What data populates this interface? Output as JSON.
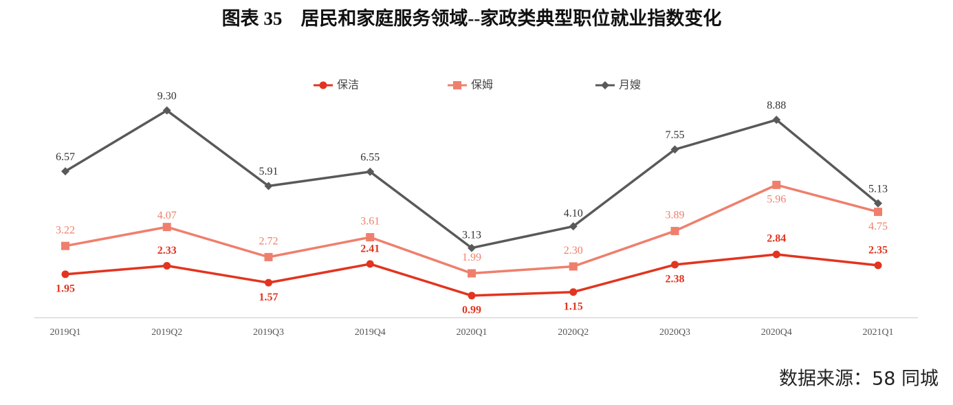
{
  "chart_data": {
    "type": "line",
    "title": "图表 35　居民和家庭服务领域--家政类典型职位就业指数变化",
    "source": "数据来源：58 同城",
    "categories": [
      "2019Q1",
      "2019Q2",
      "2019Q3",
      "2019Q4",
      "2020Q1",
      "2020Q2",
      "2020Q3",
      "2020Q4",
      "2021Q1"
    ],
    "ylim": [
      0,
      10
    ],
    "legend": "top",
    "series": [
      {
        "name": "保洁",
        "color": "#e2341f",
        "marker": "circle",
        "values": [
          1.95,
          2.33,
          1.57,
          2.41,
          0.99,
          1.15,
          2.38,
          2.84,
          2.35
        ],
        "value_labels": [
          "1.95",
          "2.33",
          "1.57",
          "2.41",
          "0.99",
          "1.15",
          "2.38",
          "2.84",
          "2.35"
        ]
      },
      {
        "name": "保姆",
        "color": "#ef7f6c",
        "marker": "square",
        "values": [
          3.22,
          4.07,
          2.72,
          3.61,
          1.99,
          2.3,
          3.89,
          5.96,
          4.75
        ],
        "value_labels": [
          "3.22",
          "4.07",
          "2.72",
          "3.61",
          "1.99",
          "2.30",
          "3.89",
          "5.96",
          "4.75"
        ]
      },
      {
        "name": "月嫂",
        "color": "#595959",
        "marker": "diamond",
        "values": [
          6.57,
          9.3,
          5.91,
          6.55,
          3.13,
          4.1,
          7.55,
          8.88,
          5.13
        ],
        "value_labels": [
          "6.57",
          "9.30",
          "5.91",
          "6.55",
          "3.13",
          "4.10",
          "7.55",
          "8.88",
          "5.13"
        ]
      }
    ]
  }
}
